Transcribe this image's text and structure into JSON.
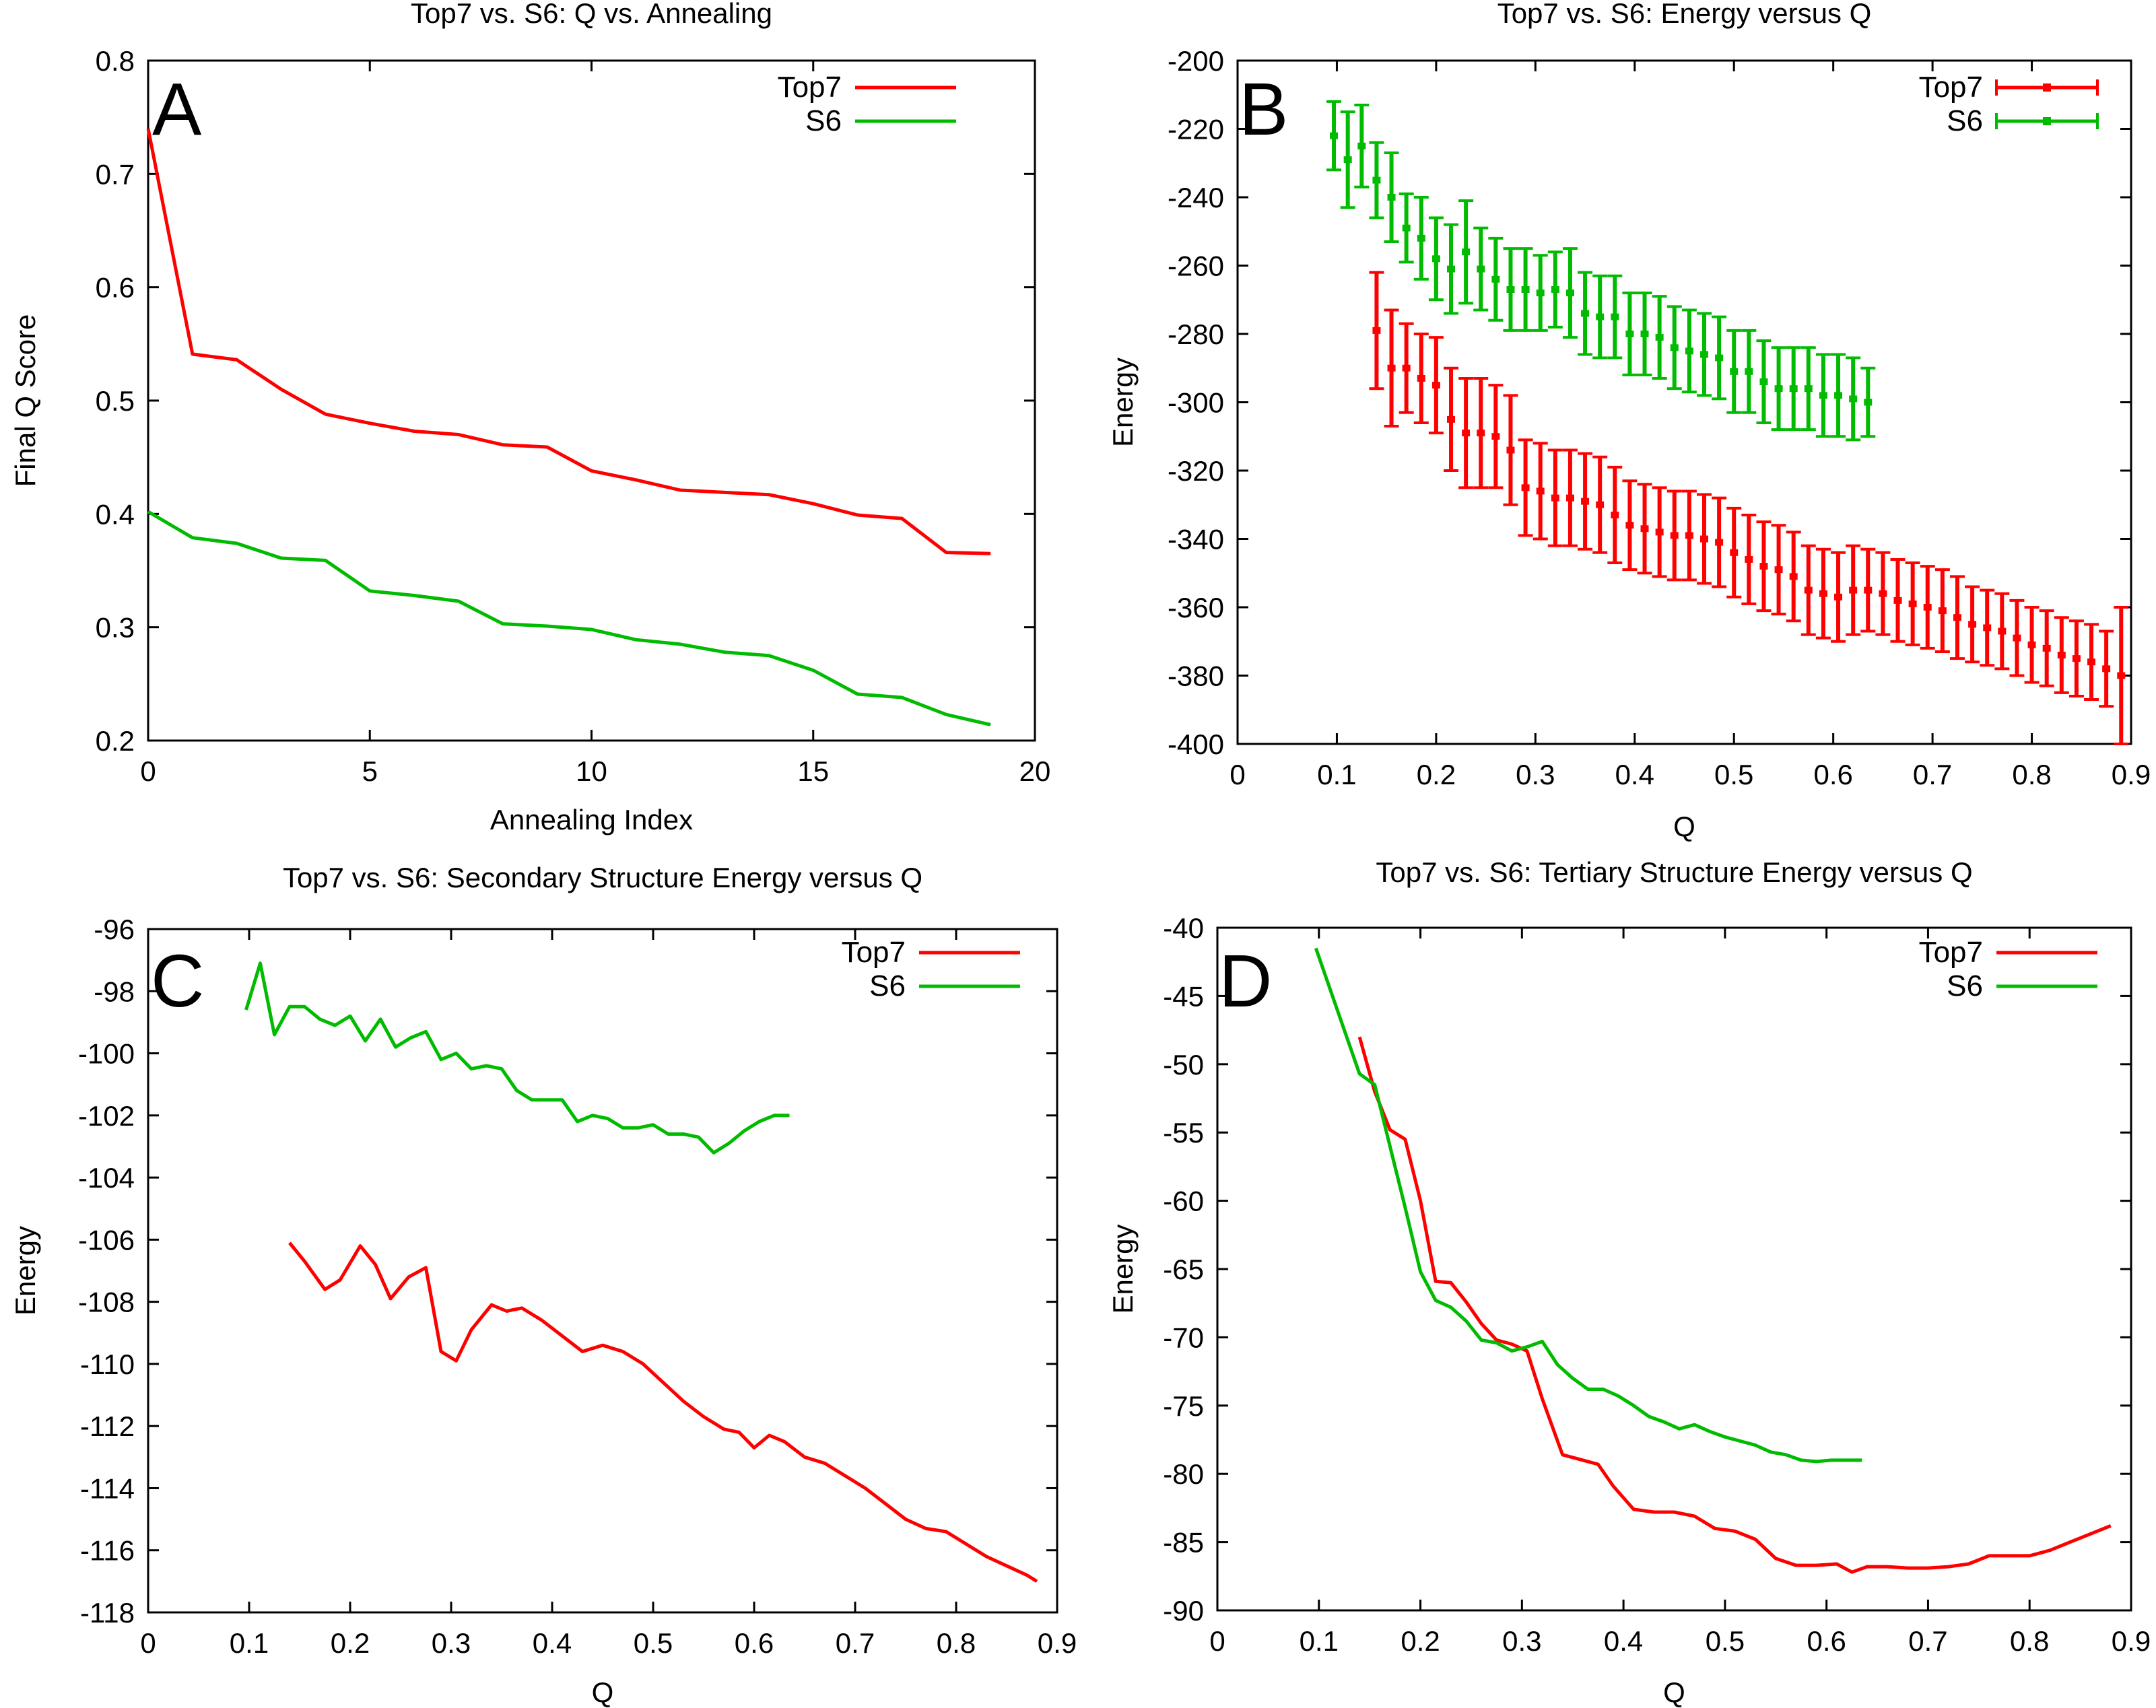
{
  "colors": {
    "top7": "#ff0000",
    "s6": "#00bb00",
    "axis": "#000000"
  },
  "chart_data": [
    {
      "type": "line",
      "panel_letter": "A",
      "title": "Top7 vs. S6: Q vs. Annealing",
      "xlabel": "Annealing Index",
      "ylabel": "Final Q Score",
      "xlim": [
        0,
        20
      ],
      "ylim": [
        0.2,
        0.8
      ],
      "xticks": [
        0,
        5,
        10,
        15,
        20
      ],
      "xtick_labels": [
        "0",
        "5",
        "10",
        "15",
        "20"
      ],
      "yticks": [
        0.2,
        0.3,
        0.4,
        0.5,
        0.6,
        0.7,
        0.8
      ],
      "ytick_labels": [
        "0.2",
        "0.3",
        "0.4",
        "0.5",
        "0.6",
        "0.7",
        "0.8"
      ],
      "legend_position": "top-right",
      "series": [
        {
          "name": "Top7",
          "color": "#ff0000",
          "x": [
            0,
            1,
            2,
            3,
            4,
            5,
            6,
            7,
            8,
            9,
            10,
            11,
            12,
            13,
            14,
            15,
            16,
            17,
            18,
            19
          ],
          "y": [
            0.74,
            0.541,
            0.536,
            0.51,
            0.488,
            0.48,
            0.473,
            0.47,
            0.461,
            0.459,
            0.438,
            0.43,
            0.421,
            0.419,
            0.417,
            0.409,
            0.399,
            0.396,
            0.366,
            0.365
          ]
        },
        {
          "name": "S6",
          "color": "#00bb00",
          "x": [
            0,
            1,
            2,
            3,
            4,
            5,
            6,
            7,
            8,
            9,
            10,
            11,
            12,
            13,
            14,
            15,
            16,
            17,
            18,
            19
          ],
          "y": [
            0.402,
            0.379,
            0.374,
            0.361,
            0.359,
            0.332,
            0.328,
            0.323,
            0.303,
            0.301,
            0.298,
            0.289,
            0.285,
            0.278,
            0.275,
            0.262,
            0.241,
            0.238,
            0.223,
            0.214
          ]
        }
      ]
    },
    {
      "type": "errorbar",
      "panel_letter": "B",
      "title": "Top7 vs. S6: Energy versus Q",
      "xlabel": "Q",
      "ylabel": "Energy",
      "xlim": [
        0,
        0.9
      ],
      "ylim": [
        -400,
        -200
      ],
      "xticks": [
        0,
        0.1,
        0.2,
        0.3,
        0.4,
        0.5,
        0.6,
        0.7,
        0.8,
        0.9
      ],
      "xtick_labels": [
        "0",
        "0.1",
        "0.2",
        "0.3",
        "0.4",
        "0.5",
        "0.6",
        "0.7",
        "0.8",
        "0.9"
      ],
      "yticks": [
        -400,
        -380,
        -360,
        -340,
        -320,
        -300,
        -280,
        -260,
        -240,
        -220,
        -200
      ],
      "ytick_labels": [
        "-400",
        "-380",
        "-360",
        "-340",
        "-320",
        "-300",
        "-280",
        "-260",
        "-240",
        "-220",
        "-200"
      ],
      "legend_position": "top-right",
      "series": [
        {
          "name": "Top7",
          "color": "#ff0000",
          "x": [
            0.14,
            0.155,
            0.17,
            0.185,
            0.2,
            0.215,
            0.23,
            0.245,
            0.26,
            0.275,
            0.29,
            0.305,
            0.32,
            0.335,
            0.35,
            0.365,
            0.38,
            0.395,
            0.41,
            0.425,
            0.44,
            0.455,
            0.47,
            0.485,
            0.5,
            0.515,
            0.53,
            0.545,
            0.56,
            0.575,
            0.59,
            0.605,
            0.62,
            0.635,
            0.65,
            0.665,
            0.68,
            0.695,
            0.71,
            0.725,
            0.74,
            0.755,
            0.77,
            0.785,
            0.8,
            0.815,
            0.83,
            0.845,
            0.86,
            0.875,
            0.89
          ],
          "y": [
            -279,
            -290,
            -290,
            -293,
            -295,
            -305,
            -309,
            -309,
            -310,
            -314,
            -325,
            -326,
            -328,
            -328,
            -329,
            -330,
            -333,
            -336,
            -337,
            -338,
            -339,
            -339,
            -340,
            -341,
            -344,
            -346,
            -348,
            -349,
            -351,
            -355,
            -356,
            -357,
            -355,
            -355,
            -356,
            -358,
            -359,
            -360,
            -361,
            -363,
            -365,
            -366,
            -367,
            -369,
            -371,
            -372,
            -374,
            -375,
            -376,
            -378,
            -380
          ],
          "err": [
            17,
            17,
            13,
            13,
            14,
            15,
            16,
            16,
            15,
            16,
            14,
            14,
            14,
            14,
            14,
            14,
            14,
            13,
            13,
            13,
            13,
            13,
            13,
            13,
            13,
            13,
            13,
            13,
            13,
            13,
            13,
            13,
            13,
            12,
            12,
            12,
            12,
            12,
            12,
            12,
            11,
            11,
            11,
            11,
            11,
            11,
            11,
            11,
            11,
            11,
            20
          ]
        },
        {
          "name": "S6",
          "color": "#00bb00",
          "x": [
            0.097,
            0.111,
            0.125,
            0.14,
            0.155,
            0.17,
            0.185,
            0.2,
            0.215,
            0.23,
            0.245,
            0.26,
            0.275,
            0.29,
            0.305,
            0.32,
            0.335,
            0.35,
            0.365,
            0.38,
            0.395,
            0.41,
            0.425,
            0.44,
            0.455,
            0.47,
            0.485,
            0.5,
            0.515,
            0.53,
            0.545,
            0.56,
            0.575,
            0.59,
            0.605,
            0.62,
            0.635
          ],
          "y": [
            -222,
            -229,
            -225,
            -235,
            -240,
            -249,
            -252,
            -258,
            -261,
            -256,
            -261,
            -264,
            -267,
            -267,
            -268,
            -267,
            -268,
            -274,
            -275,
            -275,
            -280,
            -280,
            -281,
            -284,
            -285,
            -286,
            -287,
            -291,
            -291,
            -294,
            -296,
            -296,
            -296,
            -298,
            -298,
            -299,
            -300
          ],
          "err": [
            10,
            14,
            12,
            11,
            13,
            10,
            12,
            12,
            13,
            15,
            12,
            12,
            12,
            12,
            11,
            11,
            13,
            12,
            12,
            12,
            12,
            12,
            12,
            12,
            12,
            12,
            12,
            12,
            12,
            12,
            12,
            12,
            12,
            12,
            12,
            12,
            10
          ]
        }
      ]
    },
    {
      "type": "line",
      "panel_letter": "C",
      "title": "Top7 vs. S6: Secondary Structure Energy versus Q",
      "xlabel": "Q",
      "ylabel": "Energy",
      "xlim": [
        0,
        0.9
      ],
      "ylim": [
        -118,
        -96
      ],
      "xticks": [
        0,
        0.1,
        0.2,
        0.3,
        0.4,
        0.5,
        0.6,
        0.7,
        0.8,
        0.9
      ],
      "xtick_labels": [
        "0",
        "0.1",
        "0.2",
        "0.3",
        "0.4",
        "0.5",
        "0.6",
        "0.7",
        "0.8",
        "0.9"
      ],
      "yticks": [
        -118,
        -116,
        -114,
        -112,
        -110,
        -108,
        -106,
        -104,
        -102,
        -100,
        -98,
        -96
      ],
      "ytick_labels": [
        "-118",
        "-116",
        "-114",
        "-112",
        "-110",
        "-108",
        "-106",
        "-104",
        "-102",
        "-100",
        "-98",
        "-96"
      ],
      "legend_position": "top-right",
      "series": [
        {
          "name": "Top7",
          "color": "#ff0000",
          "x": [
            0.14,
            0.155,
            0.175,
            0.19,
            0.21,
            0.225,
            0.24,
            0.258,
            0.275,
            0.29,
            0.305,
            0.32,
            0.34,
            0.355,
            0.37,
            0.39,
            0.41,
            0.43,
            0.45,
            0.47,
            0.49,
            0.51,
            0.53,
            0.55,
            0.57,
            0.585,
            0.6,
            0.615,
            0.63,
            0.65,
            0.67,
            0.69,
            0.71,
            0.73,
            0.75,
            0.77,
            0.79,
            0.81,
            0.83,
            0.85,
            0.87,
            0.88
          ],
          "y": [
            -106.1,
            -106.7,
            -107.6,
            -107.3,
            -106.2,
            -106.8,
            -107.9,
            -107.2,
            -106.9,
            -109.6,
            -109.9,
            -108.9,
            -108.1,
            -108.3,
            -108.2,
            -108.6,
            -109.1,
            -109.6,
            -109.4,
            -109.6,
            -110,
            -110.6,
            -111.2,
            -111.7,
            -112.1,
            -112.2,
            -112.7,
            -112.3,
            -112.5,
            -113,
            -113.2,
            -113.6,
            -114,
            -114.5,
            -115,
            -115.3,
            -115.4,
            -115.8,
            -116.2,
            -116.5,
            -116.8,
            -117
          ]
        },
        {
          "name": "S6",
          "color": "#00bb00",
          "x": [
            0.097,
            0.111,
            0.125,
            0.14,
            0.155,
            0.17,
            0.185,
            0.2,
            0.215,
            0.23,
            0.245,
            0.26,
            0.275,
            0.29,
            0.305,
            0.32,
            0.335,
            0.35,
            0.365,
            0.38,
            0.395,
            0.41,
            0.425,
            0.44,
            0.455,
            0.47,
            0.485,
            0.5,
            0.515,
            0.53,
            0.545,
            0.56,
            0.575,
            0.59,
            0.605,
            0.62,
            0.635
          ],
          "y": [
            -98.6,
            -97.1,
            -99.4,
            -98.5,
            -98.5,
            -98.9,
            -99.1,
            -98.8,
            -99.6,
            -98.9,
            -99.8,
            -99.5,
            -99.3,
            -100.2,
            -100,
            -100.5,
            -100.4,
            -100.5,
            -101.2,
            -101.5,
            -101.5,
            -101.5,
            -102.2,
            -102,
            -102.1,
            -102.4,
            -102.4,
            -102.3,
            -102.6,
            -102.6,
            -102.7,
            -103.2,
            -102.9,
            -102.5,
            -102.2,
            -102,
            -102
          ]
        }
      ]
    },
    {
      "type": "line",
      "panel_letter": "D",
      "title": "Top7 vs. S6: Tertiary Structure Energy versus Q",
      "xlabel": "Q",
      "ylabel": "Energy",
      "xlim": [
        0,
        0.9
      ],
      "ylim": [
        -90,
        -40
      ],
      "xticks": [
        0,
        0.1,
        0.2,
        0.3,
        0.4,
        0.5,
        0.6,
        0.7,
        0.8,
        0.9
      ],
      "xtick_labels": [
        "0",
        "0.1",
        "0.2",
        "0.3",
        "0.4",
        "0.5",
        "0.6",
        "0.7",
        "0.8",
        "0.9"
      ],
      "yticks": [
        -90,
        -85,
        -80,
        -75,
        -70,
        -65,
        -60,
        -55,
        -50,
        -45,
        -40
      ],
      "ytick_labels": [
        "-90",
        "-85",
        "-80",
        "-75",
        "-70",
        "-65",
        "-60",
        "-55",
        "-50",
        "-45",
        "-40"
      ],
      "legend_position": "top-right",
      "series": [
        {
          "name": "Top7",
          "color": "#ff0000",
          "x": [
            0.14,
            0.155,
            0.17,
            0.185,
            0.2,
            0.215,
            0.23,
            0.245,
            0.26,
            0.275,
            0.29,
            0.305,
            0.32,
            0.34,
            0.36,
            0.375,
            0.39,
            0.41,
            0.43,
            0.45,
            0.47,
            0.49,
            0.51,
            0.53,
            0.55,
            0.57,
            0.59,
            0.61,
            0.625,
            0.64,
            0.66,
            0.68,
            0.7,
            0.72,
            0.74,
            0.76,
            0.78,
            0.8,
            0.82,
            0.84,
            0.86,
            0.88
          ],
          "y": [
            -48,
            -52,
            -54.8,
            -55.5,
            -60,
            -65.9,
            -66,
            -67.4,
            -69,
            -70.2,
            -70.5,
            -71,
            -74.5,
            -78.6,
            -79,
            -79.3,
            -80.9,
            -82.6,
            -82.8,
            -82.8,
            -83.1,
            -84,
            -84.2,
            -84.8,
            -86.2,
            -86.7,
            -86.7,
            -86.6,
            -87.2,
            -86.8,
            -86.8,
            -86.9,
            -86.9,
            -86.8,
            -86.6,
            -86,
            -86,
            -86,
            -85.6,
            -85,
            -84.4,
            -83.8
          ]
        },
        {
          "name": "S6",
          "color": "#00bb00",
          "x": [
            0.097,
            0.111,
            0.125,
            0.14,
            0.155,
            0.17,
            0.185,
            0.2,
            0.215,
            0.23,
            0.245,
            0.26,
            0.275,
            0.29,
            0.305,
            0.32,
            0.335,
            0.35,
            0.365,
            0.38,
            0.395,
            0.41,
            0.425,
            0.44,
            0.455,
            0.47,
            0.485,
            0.5,
            0.515,
            0.53,
            0.545,
            0.56,
            0.575,
            0.59,
            0.605,
            0.62,
            0.635
          ],
          "y": [
            -41.5,
            -44.5,
            -47.5,
            -50.7,
            -51.5,
            -56,
            -60.5,
            -65.2,
            -67.3,
            -67.8,
            -68.8,
            -70.2,
            -70.4,
            -71,
            -70.7,
            -70.3,
            -72,
            -73,
            -73.8,
            -73.8,
            -74.3,
            -75,
            -75.8,
            -76.2,
            -76.7,
            -76.4,
            -76.9,
            -77.3,
            -77.6,
            -77.9,
            -78.4,
            -78.6,
            -79,
            -79.1,
            -79,
            -79,
            -79
          ]
        }
      ]
    }
  ]
}
